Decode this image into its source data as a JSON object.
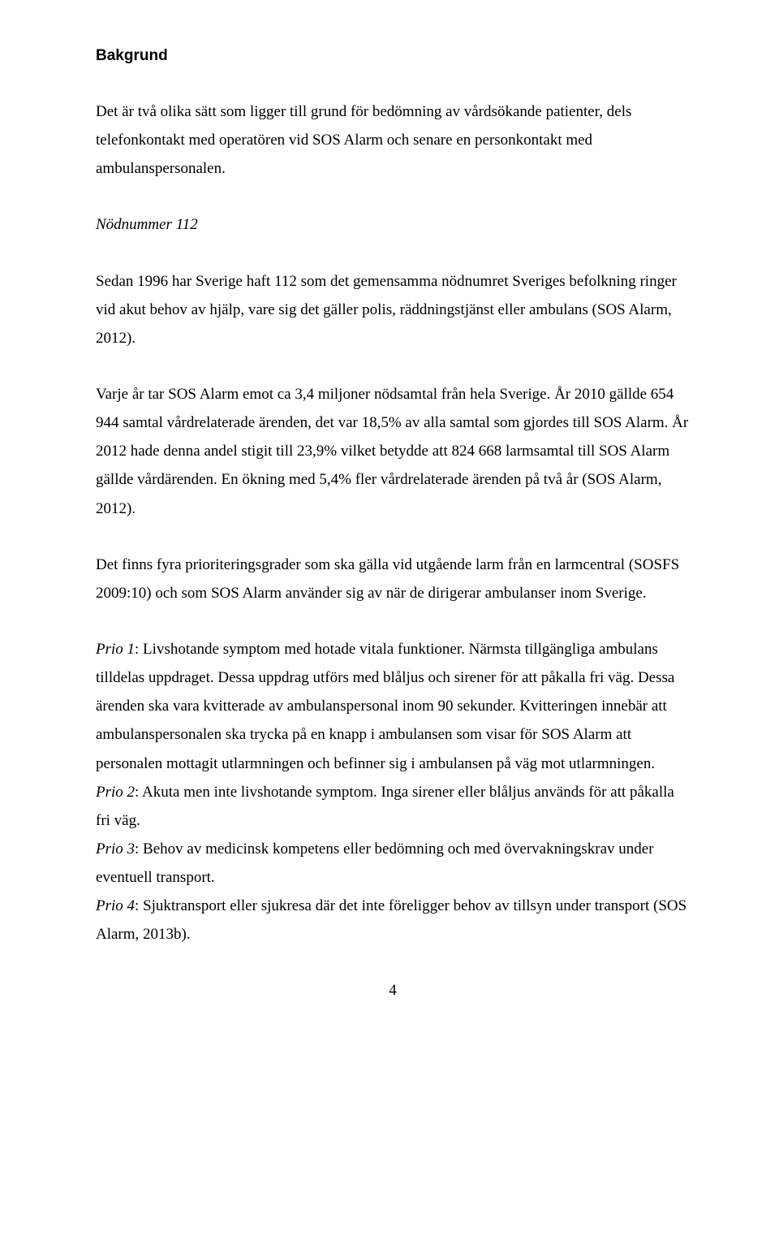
{
  "heading": "Bakgrund",
  "p1": "Det är två olika sätt som ligger till grund för bedömning av vårdsökande patienter, dels telefonkontakt med operatören vid SOS Alarm och senare en personkontakt med ambulanspersonalen.",
  "sub1": "Nödnummer 112",
  "p2": "Sedan 1996 har Sverige haft 112 som det gemensamma nödnumret Sveriges befolkning ringer vid akut behov av hjälp, vare sig det gäller polis, räddningstjänst eller ambulans (SOS Alarm, 2012).",
  "p3": "Varje år tar SOS Alarm emot ca 3,4 miljoner nödsamtal från hela Sverige. År 2010 gällde 654 944 samtal vårdrelaterade ärenden, det var 18,5% av alla samtal som gjordes till SOS Alarm. År 2012 hade denna andel stigit till 23,9% vilket betydde att 824 668 larmsamtal till SOS Alarm gällde vårdärenden. En ökning med 5,4% fler vårdrelaterade ärenden på två år (SOS Alarm, 2012).",
  "p4": "Det finns fyra prioriteringsgrader som ska gälla vid utgående larm från en larmcentral (SOSFS 2009:10) och som SOS Alarm använder sig av när de dirigerar ambulanser inom Sverige.",
  "prio1_label": "Prio 1",
  "prio1_text": ": Livshotande symptom med hotade vitala funktioner. Närmsta tillgängliga ambulans tilldelas uppdraget. Dessa uppdrag utförs med blåljus och sirener för att påkalla fri väg. Dessa ärenden ska vara kvitterade av ambulanspersonal inom 90 sekunder. Kvitteringen innebär att ambulanspersonalen ska trycka på en knapp i ambulansen som visar för SOS Alarm att personalen mottagit utlarmningen och befinner sig i ambulansen på väg mot utlarmningen.",
  "prio2_label": "Prio 2",
  "prio2_text": ": Akuta men inte livshotande symptom. Inga sirener eller blåljus används för att påkalla fri väg.",
  "prio3_label": "Prio 3",
  "prio3_text": ": Behov av medicinsk kompetens eller bedömning och med övervakningskrav under eventuell transport.",
  "prio4_label": "Prio 4",
  "prio4_text": ": Sjuktransport eller sjukresa där det inte föreligger behov av tillsyn under transport (SOS Alarm, 2013b).",
  "pagenum": "4"
}
